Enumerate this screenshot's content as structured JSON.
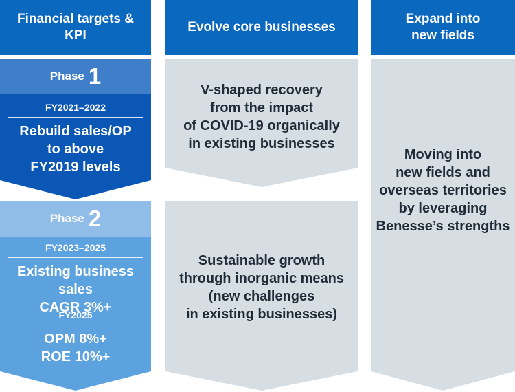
{
  "headers": {
    "col1": [
      "Financial targets &",
      "KPI"
    ],
    "col2": [
      "Evolve core businesses"
    ],
    "col3": [
      "Expand into",
      "new fields"
    ]
  },
  "phase1": {
    "label": "Phase",
    "number": "1",
    "period": "FY2021–2022",
    "target": [
      "Rebuild sales/OP",
      "to above",
      "FY2019 levels"
    ]
  },
  "phase2": {
    "label": "Phase",
    "number": "2",
    "period1": "FY2023–2025",
    "target1": [
      "Existing business sales",
      "CAGR 3%+"
    ],
    "period2": "FY2025",
    "target2": [
      "OPM 8%+",
      "ROE 10%+"
    ]
  },
  "core": {
    "phase1_text": [
      "V-shaped recovery",
      "from the impact",
      "of COVID-19 organically",
      "in existing businesses"
    ],
    "phase2_text": [
      "Sustainable growth",
      "through inorganic means",
      "(new challenges",
      "in existing businesses)"
    ]
  },
  "new_fields": {
    "text": [
      "Moving into",
      "new fields and",
      "overseas territories",
      "by leveraging",
      "Benesse’s strengths"
    ]
  },
  "colors": {
    "header_blue": "#0b68bf",
    "phase1_light": "#3f7ec9",
    "phase1_dark": "#0b57b5",
    "phase2_light": "#8fbde8",
    "phase2_dark": "#5ba2de",
    "grey_panel": "#d6dde3",
    "dark_text": "#1f2c38"
  }
}
